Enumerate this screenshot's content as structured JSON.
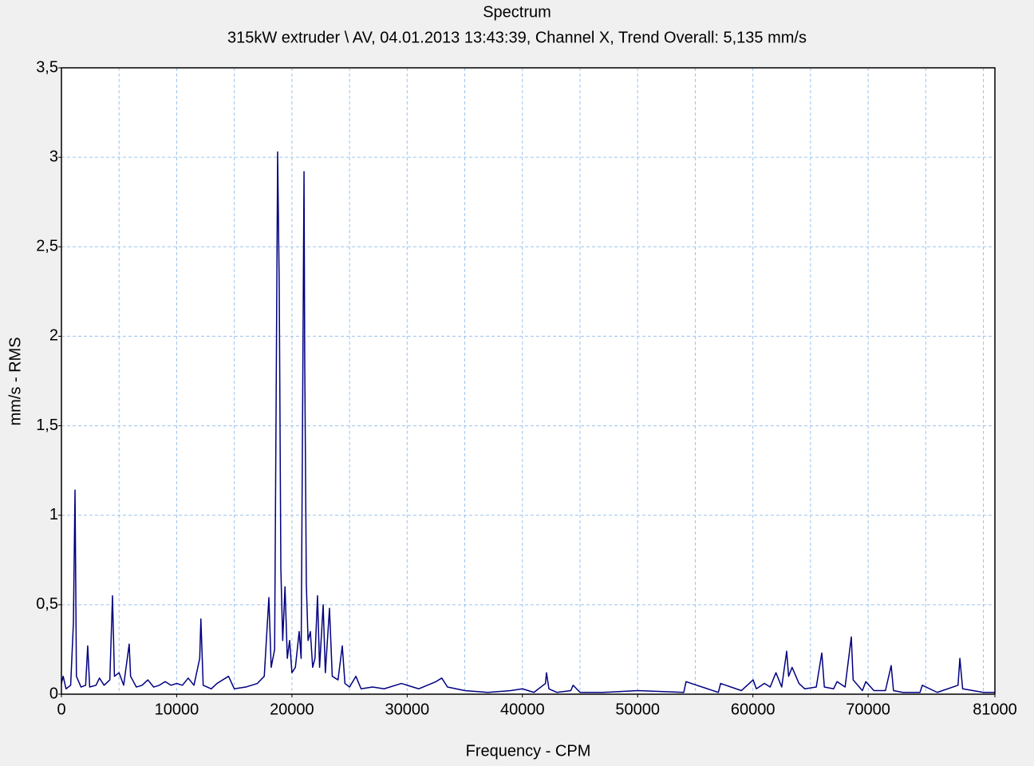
{
  "chart_data": {
    "type": "line",
    "title": "Spectrum",
    "subtitle": "315kW extruder \\ AV, 04.01.2013 13:43:39, Channel X, Trend Overall: 5,135 mm/s",
    "x_label": "Frequency - CPM",
    "y_label": "mm/s - RMS",
    "color": "#000080",
    "xlim": [
      0,
      81000
    ],
    "ylim": [
      0,
      3.5
    ],
    "xticks": [
      0,
      10000,
      20000,
      30000,
      40000,
      50000,
      60000,
      70000,
      81000
    ],
    "xgrid": [
      5000,
      10000,
      15000,
      20000,
      25000,
      30000,
      35000,
      40000,
      45000,
      50000,
      55000,
      60000,
      65000,
      70000,
      75000,
      80000
    ],
    "yticks": [
      0,
      {
        "value": 0.5,
        "label": "0,5"
      },
      1,
      {
        "value": 1.5,
        "label": "1,5"
      },
      2,
      {
        "value": 2.5,
        "label": "2,5"
      },
      3,
      {
        "value": 3.5,
        "label": "3,5"
      }
    ],
    "grid": true,
    "x": [
      0,
      150,
      400,
      800,
      1040,
      1180,
      1300,
      1700,
      2100,
      2280,
      2450,
      3000,
      3300,
      3700,
      4200,
      4430,
      4600,
      5000,
      5400,
      5880,
      6000,
      6500,
      7000,
      7500,
      8000,
      8500,
      9000,
      9500,
      10000,
      10500,
      11000,
      11500,
      12000,
      12100,
      12300,
      13000,
      13500,
      14500,
      15000,
      16000,
      17000,
      17600,
      18000,
      18200,
      18500,
      18760,
      18900,
      19040,
      19200,
      19400,
      19600,
      19800,
      20000,
      20300,
      20630,
      20800,
      21050,
      21110,
      21250,
      21400,
      21600,
      21800,
      22000,
      22220,
      22400,
      22710,
      22900,
      23260,
      23500,
      24000,
      24370,
      24600,
      25000,
      25550,
      26000,
      27000,
      28000,
      29500,
      31000,
      32500,
      33000,
      33500,
      35000,
      37000,
      39000,
      40000,
      41000,
      42000,
      42090,
      42300,
      43000,
      44200,
      44400,
      45000,
      47000,
      50000,
      54000,
      54200,
      57000,
      57200,
      59000,
      60020,
      60300,
      61000,
      61500,
      62000,
      62500,
      62930,
      63100,
      63400,
      64000,
      64500,
      65500,
      65980,
      66200,
      67000,
      67300,
      68000,
      68540,
      68700,
      69500,
      69800,
      70500,
      71500,
      72000,
      72200,
      73000,
      74500,
      74700,
      76000,
      77800,
      77960,
      78200,
      80000,
      81000
    ],
    "values": [
      0.06,
      0.1,
      0.03,
      0.05,
      0.4,
      1.14,
      0.1,
      0.04,
      0.05,
      0.27,
      0.04,
      0.05,
      0.09,
      0.05,
      0.08,
      0.55,
      0.1,
      0.12,
      0.05,
      0.28,
      0.1,
      0.04,
      0.05,
      0.08,
      0.04,
      0.05,
      0.07,
      0.05,
      0.06,
      0.05,
      0.09,
      0.05,
      0.2,
      0.42,
      0.05,
      0.03,
      0.06,
      0.1,
      0.03,
      0.04,
      0.06,
      0.1,
      0.54,
      0.15,
      0.25,
      3.03,
      2.27,
      0.7,
      0.3,
      0.6,
      0.2,
      0.3,
      0.12,
      0.15,
      0.35,
      0.2,
      2.92,
      1.88,
      0.62,
      0.3,
      0.35,
      0.15,
      0.2,
      0.55,
      0.15,
      0.5,
      0.12,
      0.48,
      0.1,
      0.08,
      0.27,
      0.06,
      0.04,
      0.1,
      0.03,
      0.04,
      0.03,
      0.06,
      0.03,
      0.07,
      0.09,
      0.04,
      0.02,
      0.01,
      0.02,
      0.03,
      0.01,
      0.06,
      0.12,
      0.03,
      0.01,
      0.02,
      0.05,
      0.01,
      0.01,
      0.02,
      0.01,
      0.07,
      0.01,
      0.06,
      0.02,
      0.08,
      0.03,
      0.06,
      0.04,
      0.12,
      0.04,
      0.24,
      0.1,
      0.15,
      0.06,
      0.03,
      0.04,
      0.23,
      0.04,
      0.03,
      0.07,
      0.04,
      0.32,
      0.08,
      0.02,
      0.07,
      0.02,
      0.02,
      0.16,
      0.02,
      0.01,
      0.01,
      0.05,
      0.01,
      0.05,
      0.2,
      0.03,
      0.01,
      0.01
    ]
  }
}
